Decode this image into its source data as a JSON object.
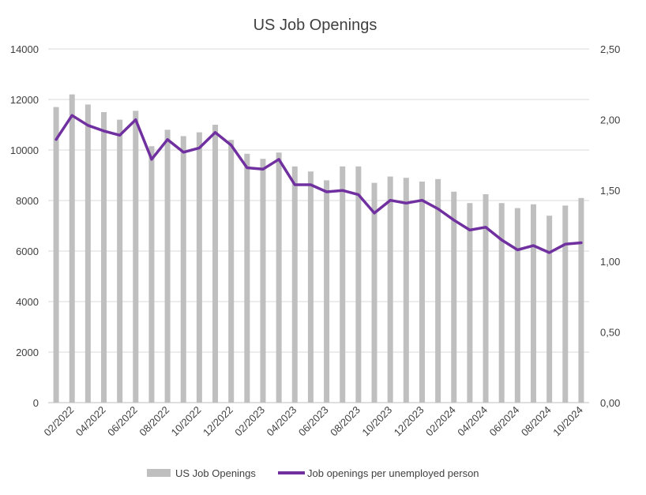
{
  "chart_data": {
    "type": "bar",
    "title": "US Job Openings",
    "xlabel": "",
    "ylabel": "",
    "y_left": {
      "ticks": [
        "0",
        "2000",
        "4000",
        "6000",
        "8000",
        "10000",
        "12000",
        "14000"
      ],
      "min": 0,
      "max": 14000
    },
    "y_right": {
      "ticks": [
        "0,00",
        "0,50",
        "1,00",
        "1,50",
        "2,00",
        "2,50"
      ],
      "min": 0,
      "max": 2.5
    },
    "x_tick_labels": [
      "02/2022",
      "04/2022",
      "06/2022",
      "08/2022",
      "10/2022",
      "12/2022",
      "02/2023",
      "04/2023",
      "06/2023",
      "08/2023",
      "10/2023",
      "12/2023",
      "02/2024",
      "04/2024",
      "06/2024",
      "08/2024",
      "10/2024"
    ],
    "categories": [
      "01/2022",
      "02/2022",
      "03/2022",
      "04/2022",
      "05/2022",
      "06/2022",
      "07/2022",
      "08/2022",
      "09/2022",
      "10/2022",
      "11/2022",
      "12/2022",
      "01/2023",
      "02/2023",
      "03/2023",
      "04/2023",
      "05/2023",
      "06/2023",
      "07/2023",
      "08/2023",
      "09/2023",
      "10/2023",
      "11/2023",
      "12/2023",
      "01/2024",
      "02/2024",
      "03/2024",
      "04/2024",
      "05/2024",
      "06/2024",
      "07/2024",
      "08/2024",
      "09/2024",
      "10/2024"
    ],
    "series": [
      {
        "name": "US Job Openings",
        "type": "bar",
        "axis": "left",
        "color": "#bfbfbf",
        "values": [
          11700,
          12200,
          11800,
          11500,
          11200,
          11550,
          10150,
          10800,
          10550,
          10700,
          11000,
          10400,
          9850,
          9650,
          9900,
          9350,
          9150,
          8800,
          9350,
          9350,
          8700,
          8950,
          8900,
          8750,
          8850,
          8350,
          7900,
          8250,
          7900,
          7700,
          7850,
          7400,
          7800,
          8100
        ]
      },
      {
        "name": "Job openings per unemployed person",
        "type": "line",
        "axis": "right",
        "color": "#7030a0",
        "values": [
          1.86,
          2.03,
          1.96,
          1.92,
          1.89,
          2.0,
          1.72,
          1.86,
          1.77,
          1.8,
          1.91,
          1.82,
          1.66,
          1.65,
          1.72,
          1.54,
          1.54,
          1.49,
          1.5,
          1.47,
          1.34,
          1.43,
          1.41,
          1.43,
          1.37,
          1.29,
          1.22,
          1.24,
          1.15,
          1.08,
          1.11,
          1.06,
          1.12,
          1.13
        ]
      }
    ],
    "grid": true,
    "legend_position": "bottom",
    "colors": {
      "gridline": "#d9d9d9",
      "axis": "#bfbfbf",
      "text": "#404040"
    }
  }
}
